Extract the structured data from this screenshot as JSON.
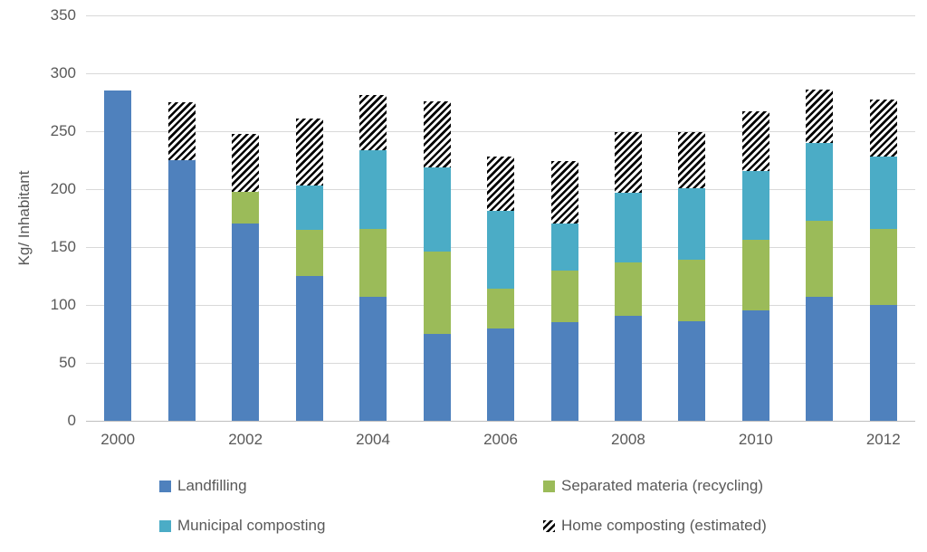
{
  "chart_data": {
    "type": "bar",
    "subtype": "stacked",
    "title": "",
    "ylabel": "Kg/ Inhabitant",
    "xlabel": "",
    "ylim": [
      0,
      350
    ],
    "ytick_step": 50,
    "yticks": [
      0,
      50,
      100,
      150,
      200,
      250,
      300,
      350
    ],
    "grid": "horizontal",
    "categories": [
      "2000",
      "2001",
      "2002",
      "2003",
      "2004",
      "2005",
      "2006",
      "2007",
      "2008",
      "2009",
      "2010",
      "2011",
      "2012"
    ],
    "xtick_labels_shown": [
      "2000",
      "2002",
      "2004",
      "2006",
      "2008",
      "2010",
      "2012"
    ],
    "series": [
      {
        "name": "Landfilling",
        "key": "landfilling",
        "color": "#4f81bd",
        "pattern": "solid",
        "values": [
          285,
          225,
          170,
          125,
          107,
          75,
          80,
          85,
          91,
          86,
          95,
          107,
          100
        ]
      },
      {
        "name": "Separated materia (recycling)",
        "key": "separated-materia-recycling",
        "color": "#9bbb59",
        "pattern": "solid",
        "values": [
          0,
          0,
          28,
          40,
          59,
          71,
          34,
          45,
          46,
          53,
          61,
          66,
          66
        ]
      },
      {
        "name": "Municipal composting",
        "key": "municipal-composting",
        "color": "#4bacc6",
        "pattern": "solid",
        "values": [
          0,
          0,
          0,
          38,
          68,
          73,
          67,
          40,
          60,
          62,
          60,
          67,
          62
        ]
      },
      {
        "name": "Home composting (estimated)",
        "key": "home-composting-estimated",
        "color": "#000000",
        "pattern": "diagonal-hatch",
        "values": [
          0,
          50,
          50,
          58,
          47,
          57,
          47,
          54,
          52,
          48,
          51,
          46,
          49
        ]
      }
    ],
    "legend_position": "bottom",
    "legend_columns": 2
  },
  "style": {
    "gridline_color": "#d9d9d9",
    "axisline_color": "#bfbfbf",
    "text_color": "#595959",
    "background_color": "#ffffff"
  }
}
